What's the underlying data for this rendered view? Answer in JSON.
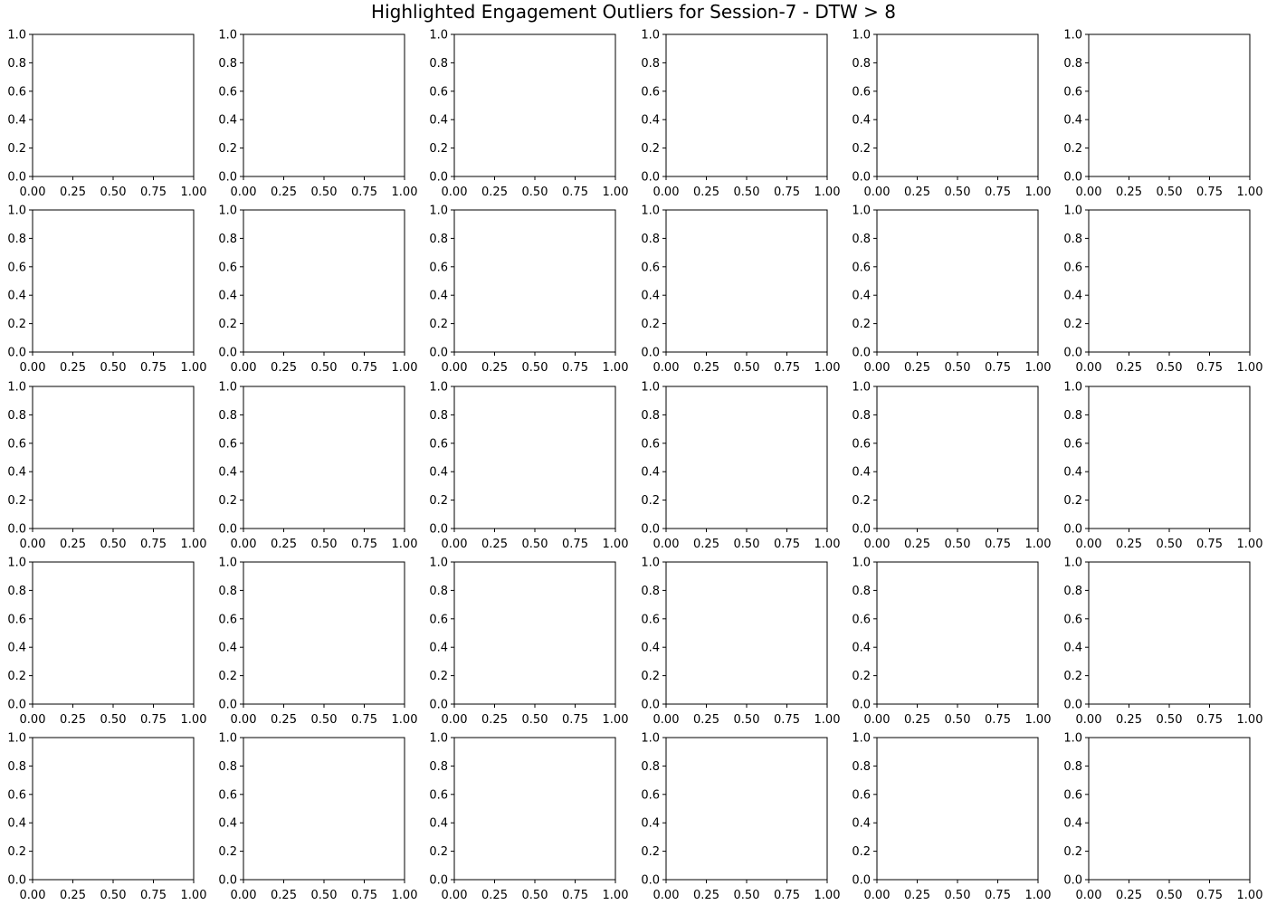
{
  "chart_data": {
    "type": "scatter",
    "title": "Highlighted Engagement Outliers for Session-7 - DTW > 8",
    "grid": false,
    "rows": 5,
    "cols": 6,
    "subplot_count": 30,
    "subplot_axes": {
      "xlim": [
        0,
        1
      ],
      "ylim": [
        0,
        1
      ],
      "xticks": [
        "0.00",
        "0.25",
        "0.50",
        "0.75",
        "1.00"
      ],
      "yticks": [
        "0.0",
        "0.2",
        "0.4",
        "0.6",
        "0.8",
        "1.0"
      ],
      "xlabel": "",
      "ylabel": "",
      "series": []
    }
  }
}
